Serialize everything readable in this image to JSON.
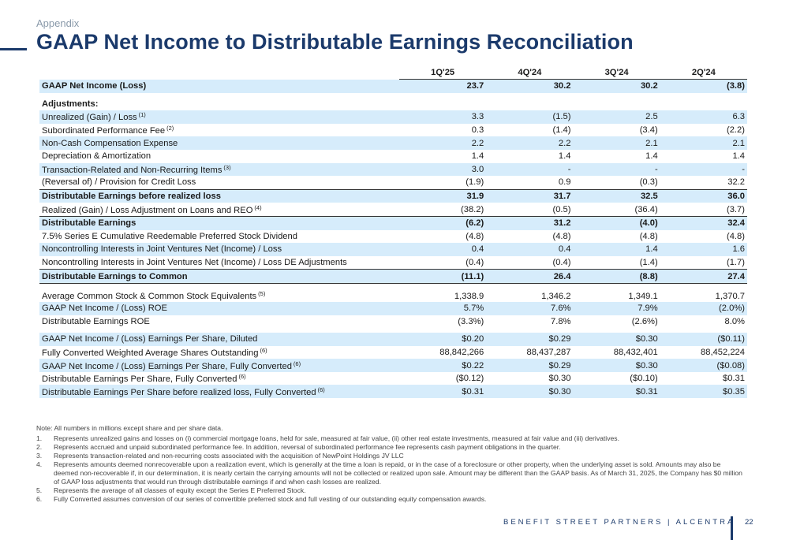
{
  "header": {
    "section": "Appendix",
    "title": "GAAP Net Income to Distributable Earnings Reconciliation"
  },
  "columns": [
    "1Q'25",
    "4Q'24",
    "3Q'24",
    "2Q'24"
  ],
  "rows": [
    {
      "label": "GAAP Net Income (Loss)",
      "sup": "",
      "values": [
        "23.7",
        "30.2",
        "30.2",
        "(3.8)"
      ]
    },
    {
      "label": "Adjustments:",
      "sup": "",
      "values": [
        "",
        "",
        "",
        ""
      ]
    },
    {
      "label": "Unrealized (Gain) / Loss",
      "sup": "(1)",
      "values": [
        "3.3",
        "(1.5)",
        "2.5",
        "6.3"
      ]
    },
    {
      "label": "Subordinated Performance Fee",
      "sup": "(2)",
      "values": [
        "0.3",
        "(1.4)",
        "(3.4)",
        "(2.2)"
      ]
    },
    {
      "label": "Non-Cash Compensation Expense",
      "sup": "",
      "values": [
        "2.2",
        "2.2",
        "2.1",
        "2.1"
      ]
    },
    {
      "label": "Depreciation & Amortization",
      "sup": "",
      "values": [
        "1.4",
        "1.4",
        "1.4",
        "1.4"
      ]
    },
    {
      "label": "Transaction-Related and Non-Recurring Items",
      "sup": "(3)",
      "values": [
        "3.0",
        "-",
        "-",
        "-"
      ]
    },
    {
      "label": "(Reversal of) / Provision for Credit Loss",
      "sup": "",
      "values": [
        "(1.9)",
        "0.9",
        "(0.3)",
        "32.2"
      ]
    },
    {
      "label": "Distributable Earnings before realized loss",
      "sup": "",
      "values": [
        "31.9",
        "31.7",
        "32.5",
        "36.0"
      ]
    },
    {
      "label": "Realized (Gain) / Loss Adjustment on Loans and REO",
      "sup": "(4)",
      "values": [
        "(38.2)",
        "(0.5)",
        "(36.4)",
        "(3.7)"
      ]
    },
    {
      "label": "Distributable Earnings",
      "sup": "",
      "values": [
        "(6.2)",
        "31.2",
        "(4.0)",
        "32.4"
      ]
    },
    {
      "label": "7.5% Series E Cumulative Reedemable Preferred Stock Dividend",
      "sup": "",
      "values": [
        "(4.8)",
        "(4.8)",
        "(4.8)",
        "(4.8)"
      ]
    },
    {
      "label": "Noncontrolling Interests in Joint  Ventures Net (Income) / Loss",
      "sup": "",
      "values": [
        "0.4",
        "0.4",
        "1.4",
        "1.6"
      ]
    },
    {
      "label": "Noncontrolling Interests in Joint Ventures Net (Income) / Loss DE Adjustments",
      "sup": "",
      "values": [
        "(0.4)",
        "(0.4)",
        "(1.4)",
        "(1.7)"
      ]
    },
    {
      "label": "Distributable Earnings to Common",
      "sup": "",
      "values": [
        "(11.1)",
        "26.4",
        "(8.8)",
        "27.4"
      ]
    },
    {
      "label": "Average Common Stock & Common Stock Equivalents",
      "sup": "(5)",
      "values": [
        "1,338.9",
        "1,346.2",
        "1,349.1",
        "1,370.7"
      ]
    },
    {
      "label": "GAAP Net Income / (Loss) ROE",
      "sup": "",
      "values": [
        "5.7%",
        "7.6%",
        "7.9%",
        "(2.0%)"
      ]
    },
    {
      "label": "Distributable Earnings ROE",
      "sup": "",
      "values": [
        "(3.3%)",
        "7.8%",
        "(2.6%)",
        "8.0%"
      ]
    },
    {
      "label": "GAAP Net Income / (Loss) Earnings Per Share, Diluted",
      "sup": "",
      "values": [
        "$0.20",
        "$0.29",
        "$0.30",
        "($0.11)"
      ]
    },
    {
      "label": "Fully Converted Weighted Average Shares Outstanding",
      "sup": "(6)",
      "values": [
        "88,842,266",
        "88,437,287",
        "88,432,401",
        "88,452,224"
      ]
    },
    {
      "label": "GAAP Net Income / (Loss) Earnings Per Share, Fully Converted",
      "sup": "(6)",
      "values": [
        "$0.22",
        "$0.29",
        "$0.30",
        "($0.08)"
      ]
    },
    {
      "label": "Distributable Earnings Per Share, Fully Converted",
      "sup": "(6)",
      "values": [
        "($0.12)",
        "$0.30",
        "($0.10)",
        "$0.31"
      ]
    },
    {
      "label": "Distributable Earnings Per Share before realized loss, Fully Converted",
      "sup": "(6)",
      "values": [
        "$0.31",
        "$0.30",
        "$0.31",
        "$0.35"
      ]
    }
  ],
  "notes": {
    "head": "Note: All numbers in millions except share and per share data.",
    "footnotes": [
      {
        "n": "1.",
        "text": "Represents unrealized gains and losses on (i) commercial mortgage loans, held for sale, measured at fair value, (ii) other real estate investments, measured at fair value and (iii) derivatives."
      },
      {
        "n": "2.",
        "text": "Represents accrued and unpaid subordinated performance fee. In addition, reversal of subordinated performance fee represents cash payment obligations in the quarter."
      },
      {
        "n": "3.",
        "text": "Represents transaction-related and non-recurring costs associated with the acquisition of NewPoint Holdings JV LLC"
      },
      {
        "n": "4.",
        "text": "Represents amounts deemed nonrecoverable upon a realization event, which is generally at the time a loan is repaid, or in the case of a foreclosure or other property, when the underlying asset is sold. Amounts may also be deemed non-recoverable if, in our determination, it is nearly certain the carrying amounts will not be collected or realized upon sale.  Amount may be different than the GAAP basis. As of March 31, 2025, the Company has $0 million of GAAP loss adjustments that would run through distributable earnings if and when cash losses are realized."
      },
      {
        "n": "5.",
        "text": "Represents the average of all classes of equity except the Series E Preferred Stock."
      },
      {
        "n": "6.",
        "text": "Fully Converted assumes conversion of our series of convertible preferred stock and full vesting of our outstanding equity compensation awards."
      }
    ]
  },
  "footer": {
    "brand": "BENEFIT STREET PARTNERS | ALCENTRA",
    "page": "22"
  }
}
